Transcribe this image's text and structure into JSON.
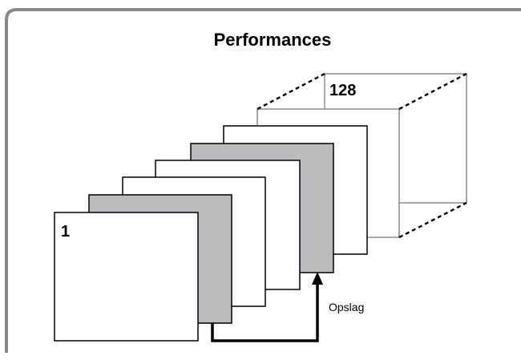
{
  "title": "Performances",
  "first_label": "1",
  "last_label": "128",
  "arrow_label": "Opslag",
  "colors": {
    "frame": "#888888",
    "card_white": "#ffffff",
    "card_gray": "#bcbcbe",
    "card_stroke": "#000000",
    "cube_stroke": "#8a8a8a",
    "arrow": "#000000"
  },
  "cards": [
    {
      "fill": "white"
    },
    {
      "fill": "gray"
    },
    {
      "fill": "white"
    },
    {
      "fill": "white"
    },
    {
      "fill": "gray"
    },
    {
      "fill": "white"
    }
  ]
}
